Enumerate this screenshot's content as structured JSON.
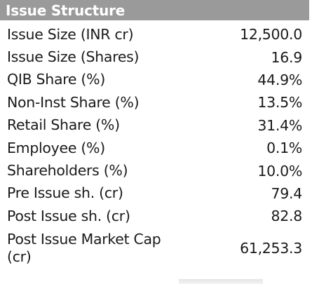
{
  "table": {
    "title": "Issue Structure",
    "rows": [
      {
        "label": "Issue Size (INR cr)",
        "value": "12,500.0"
      },
      {
        "label": "Issue Size (Shares)",
        "value": "16.9"
      },
      {
        "label": "QIB Share (%)",
        "value": "44.9%"
      },
      {
        "label": "Non-Inst Share (%)",
        "value": "13.5%"
      },
      {
        "label": "Retail Share (%)",
        "value": "31.4%"
      },
      {
        "label": "Employee (%)",
        "value": "0.1%"
      },
      {
        "label": "Shareholders (%)",
        "value": "10.0%"
      },
      {
        "label": "Pre Issue sh. (cr)",
        "value": "79.4"
      },
      {
        "label": "Post Issue sh. (cr)",
        "value": "82.8"
      },
      {
        "label": "Post Issue Market Cap (cr)",
        "value": "61,253.3"
      }
    ]
  },
  "colors": {
    "header_bg": "#9a9a9a",
    "header_text": "#ffffff",
    "body_text": "#1a1a1a"
  }
}
